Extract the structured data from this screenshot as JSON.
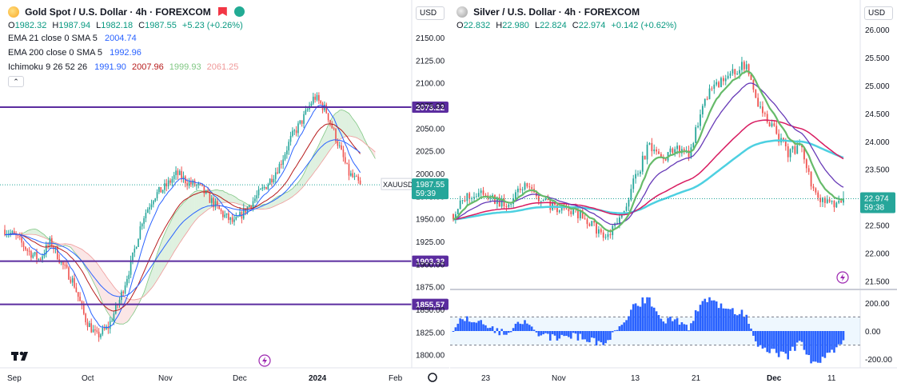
{
  "left": {
    "symbol_title": "Gold Spot / U.S. Dollar · 4h · FOREXCOM",
    "ohlc": [
      {
        "k": "O",
        "v": "1982.32"
      },
      {
        "k": "H",
        "v": "1987.94"
      },
      {
        "k": "L",
        "v": "1982.18"
      },
      {
        "k": "C",
        "v": "1987.55"
      }
    ],
    "change": "+5.23 (+0.26%)",
    "indicators": [
      {
        "name": "EMA 21 close 0 SMA 5",
        "values": [
          "2004.74"
        ],
        "colors": [
          "#2962ff"
        ]
      },
      {
        "name": "EMA 200 close 0 SMA 5",
        "values": [
          "1992.96"
        ],
        "colors": [
          "#2962ff"
        ]
      },
      {
        "name": "Ichimoku 9 26 52 26",
        "values": [
          "1991.90",
          "2007.96",
          "1999.93",
          "2061.25"
        ],
        "colors": [
          "#2962ff",
          "#b71c1c",
          "#81c784",
          "#ef9a9a"
        ]
      }
    ],
    "currency": "USD",
    "price_ticks": [
      "2150.00",
      "2125.00",
      "2100.00",
      "2075.00",
      "2050.00",
      "2025.00",
      "2000.00",
      "1975.00",
      "1950.00",
      "1925.00",
      "1900.00",
      "1875.00",
      "1850.00",
      "1825.00",
      "1800.00"
    ],
    "time_ticks": [
      "Sep",
      "Oct",
      "Nov",
      "Dec",
      "2024",
      "Feb"
    ],
    "levels": [
      "2073.22",
      "1903.32",
      "1855.57"
    ],
    "badge_symbol": "XAUUSD",
    "badge_price": "1987.55",
    "badge_timer": "59:39",
    "colors": {
      "level": "#5b2c9f",
      "up": "#26a69a",
      "down": "#ef5350",
      "badge": "#26a69a"
    }
  },
  "right": {
    "symbol_title": "Silver / U.S. Dollar · 4h · FOREXCOM",
    "ohlc": [
      {
        "k": "O",
        "v": "22.832"
      },
      {
        "k": "H",
        "v": "22.980"
      },
      {
        "k": "L",
        "v": "22.824"
      },
      {
        "k": "C",
        "v": "22.974"
      }
    ],
    "change": "+0.142 (+0.62%)",
    "currency": "USD",
    "price_ticks": [
      "26.000",
      "25.500",
      "25.000",
      "24.500",
      "24.000",
      "23.500",
      "23.000",
      "22.500",
      "22.000",
      "21.500"
    ],
    "osc_ticks": [
      "200.00",
      "0.00",
      "-200.00"
    ],
    "time_ticks": [
      "23",
      "Nov",
      "13",
      "21",
      "Dec",
      "11"
    ],
    "badge_price": "22.974",
    "badge_timer": "59:38",
    "colors": {
      "up": "#26a69a",
      "down": "#ef5350",
      "green_line": "#66bb6a",
      "purple_line": "#673ab7",
      "red_line": "#d81b60",
      "cyan_line": "#4dd0e1",
      "hist": "#2962ff",
      "badge": "#26a69a"
    }
  },
  "chart_data": [
    {
      "type": "candlestick",
      "title": "Gold Spot / U.S. Dollar · 4h · FOREXCOM",
      "ylim": [
        1790,
        2165
      ],
      "x": [
        "Sep",
        "Oct",
        "Nov",
        "Dec"
      ],
      "close_path": [
        1938,
        1930,
        1915,
        1905,
        1925,
        1900,
        1880,
        1840,
        1820,
        1830,
        1860,
        1900,
        1950,
        1975,
        1985,
        2000,
        1990,
        1985,
        1970,
        1955,
        1945,
        1960,
        1975,
        1990,
        2010,
        2040,
        2060,
        2085,
        2070,
        2035,
        2000,
        1987.55
      ],
      "horizontal_levels": [
        2073.22,
        1903.32,
        1855.57
      ],
      "last_price": 1987.55
    },
    {
      "type": "candlestick",
      "title": "Silver / U.S. Dollar · 4h · FOREXCOM",
      "ylim": [
        21.45,
        26.1
      ],
      "x": [
        "23",
        "Nov",
        "13",
        "21",
        "Dec",
        "11"
      ],
      "close_path": [
        22.7,
        23.0,
        23.1,
        22.95,
        22.85,
        23.2,
        23.0,
        22.85,
        22.8,
        22.7,
        22.5,
        22.25,
        22.6,
        23.3,
        23.9,
        23.7,
        23.85,
        23.8,
        24.8,
        25.0,
        25.2,
        25.4,
        24.6,
        24.2,
        23.8,
        23.9,
        23.0,
        22.85,
        22.974
      ],
      "oscillator": {
        "range": [
          -250,
          250
        ],
        "ticks": [
          200,
          0,
          -200
        ]
      },
      "last_price": 22.974
    }
  ]
}
